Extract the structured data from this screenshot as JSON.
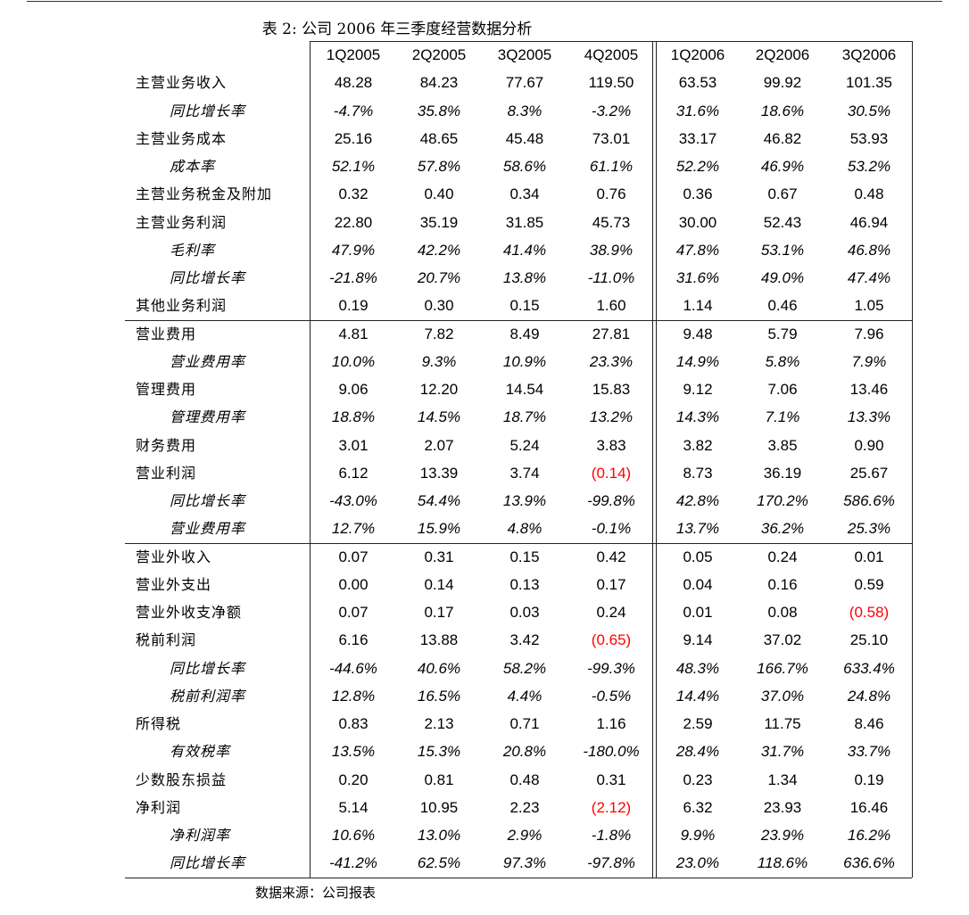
{
  "title_prefix": "表 2:",
  "title_main": "公司 2006 年三季度经营数据分析",
  "columns": [
    "1Q2005",
    "2Q2005",
    "3Q2005",
    "4Q2005",
    "1Q2006",
    "2Q2006",
    "3Q2006"
  ],
  "negative_color": "#ff0000",
  "rows": [
    {
      "label": "主营业务收入",
      "sub": false,
      "values": [
        "48.28",
        "84.23",
        "77.67",
        "119.50",
        "63.53",
        "99.92",
        "101.35"
      ]
    },
    {
      "label": "同比增长率",
      "sub": true,
      "values": [
        "-4.7%",
        "35.8%",
        "8.3%",
        "-3.2%",
        "31.6%",
        "18.6%",
        "30.5%"
      ]
    },
    {
      "label": "主营业务成本",
      "sub": false,
      "values": [
        "25.16",
        "48.65",
        "45.48",
        "73.01",
        "33.17",
        "46.82",
        "53.93"
      ]
    },
    {
      "label": "成本率",
      "sub": true,
      "values": [
        "52.1%",
        "57.8%",
        "58.6%",
        "61.1%",
        "52.2%",
        "46.9%",
        "53.2%"
      ]
    },
    {
      "label": "主营业务税金及附加",
      "sub": false,
      "values": [
        "0.32",
        "0.40",
        "0.34",
        "0.76",
        "0.36",
        "0.67",
        "0.48"
      ]
    },
    {
      "label": "主营业务利润",
      "sub": false,
      "values": [
        "22.80",
        "35.19",
        "31.85",
        "45.73",
        "30.00",
        "52.43",
        "46.94"
      ]
    },
    {
      "label": "毛利率",
      "sub": true,
      "values": [
        "47.9%",
        "42.2%",
        "41.4%",
        "38.9%",
        "47.8%",
        "53.1%",
        "46.8%"
      ]
    },
    {
      "label": "同比增长率",
      "sub": true,
      "values": [
        "-21.8%",
        "20.7%",
        "13.8%",
        "-11.0%",
        "31.6%",
        "49.0%",
        "47.4%"
      ]
    },
    {
      "label": "其他业务利润",
      "sub": false,
      "values": [
        "0.19",
        "0.30",
        "0.15",
        "1.60",
        "1.14",
        "0.46",
        "1.05"
      ]
    },
    {
      "label": "营业费用",
      "sub": false,
      "values": [
        "4.81",
        "7.82",
        "8.49",
        "27.81",
        "9.48",
        "5.79",
        "7.96"
      ]
    },
    {
      "label": "营业费用率",
      "sub": true,
      "values": [
        "10.0%",
        "9.3%",
        "10.9%",
        "23.3%",
        "14.9%",
        "5.8%",
        "7.9%"
      ]
    },
    {
      "label": "管理费用",
      "sub": false,
      "values": [
        "9.06",
        "12.20",
        "14.54",
        "15.83",
        "9.12",
        "7.06",
        "13.46"
      ]
    },
    {
      "label": "管理费用率",
      "sub": true,
      "values": [
        "18.8%",
        "14.5%",
        "18.7%",
        "13.2%",
        "14.3%",
        "7.1%",
        "13.3%"
      ]
    },
    {
      "label": "财务费用",
      "sub": false,
      "values": [
        "3.01",
        "2.07",
        "5.24",
        "3.83",
        "3.82",
        "3.85",
        "0.90"
      ]
    },
    {
      "label": "营业利润",
      "sub": false,
      "values": [
        "6.12",
        "13.39",
        "3.74",
        "(0.14)",
        "8.73",
        "36.19",
        "25.67"
      ]
    },
    {
      "label": "同比增长率",
      "sub": true,
      "values": [
        "-43.0%",
        "54.4%",
        "13.9%",
        "-99.8%",
        "42.8%",
        "170.2%",
        "586.6%"
      ]
    },
    {
      "label": "营业费用率",
      "sub": true,
      "values": [
        "12.7%",
        "15.9%",
        "4.8%",
        "-0.1%",
        "13.7%",
        "36.2%",
        "25.3%"
      ]
    },
    {
      "label": "营业外收入",
      "sub": false,
      "values": [
        "0.07",
        "0.31",
        "0.15",
        "0.42",
        "0.05",
        "0.24",
        "0.01"
      ]
    },
    {
      "label": "营业外支出",
      "sub": false,
      "values": [
        "0.00",
        "0.14",
        "0.13",
        "0.17",
        "0.04",
        "0.16",
        "0.59"
      ]
    },
    {
      "label": "营业外收支净额",
      "sub": false,
      "values": [
        "0.07",
        "0.17",
        "0.03",
        "0.24",
        "0.01",
        "0.08",
        "(0.58)"
      ]
    },
    {
      "label": "税前利润",
      "sub": false,
      "values": [
        "6.16",
        "13.88",
        "3.42",
        "(0.65)",
        "9.14",
        "37.02",
        "25.10"
      ]
    },
    {
      "label": "同比增长率",
      "sub": true,
      "values": [
        "-44.6%",
        "40.6%",
        "58.2%",
        "-99.3%",
        "48.3%",
        "166.7%",
        "633.4%"
      ]
    },
    {
      "label": "税前利润率",
      "sub": true,
      "values": [
        "12.8%",
        "16.5%",
        "4.4%",
        "-0.5%",
        "14.4%",
        "37.0%",
        "24.8%"
      ]
    },
    {
      "label": "所得税",
      "sub": false,
      "values": [
        "0.83",
        "2.13",
        "0.71",
        "1.16",
        "2.59",
        "11.75",
        "8.46"
      ]
    },
    {
      "label": "有效税率",
      "sub": true,
      "values": [
        "13.5%",
        "15.3%",
        "20.8%",
        "-180.0%",
        "28.4%",
        "31.7%",
        "33.7%"
      ]
    },
    {
      "label": "少数股东损益",
      "sub": false,
      "values": [
        "0.20",
        "0.81",
        "0.48",
        "0.31",
        "0.23",
        "1.34",
        "0.19"
      ]
    },
    {
      "label": "净利润",
      "sub": false,
      "values": [
        "5.14",
        "10.95",
        "2.23",
        "(2.12)",
        "6.32",
        "23.93",
        "16.46"
      ]
    },
    {
      "label": "净利润率",
      "sub": true,
      "values": [
        "10.6%",
        "13.0%",
        "2.9%",
        "-1.8%",
        "9.9%",
        "23.9%",
        "16.2%"
      ]
    },
    {
      "label": "同比增长率",
      "sub": true,
      "values": [
        "-41.2%",
        "62.5%",
        "97.3%",
        "-97.8%",
        "23.0%",
        "118.6%",
        "636.6%"
      ]
    }
  ],
  "source": "数据来源：公司报表"
}
